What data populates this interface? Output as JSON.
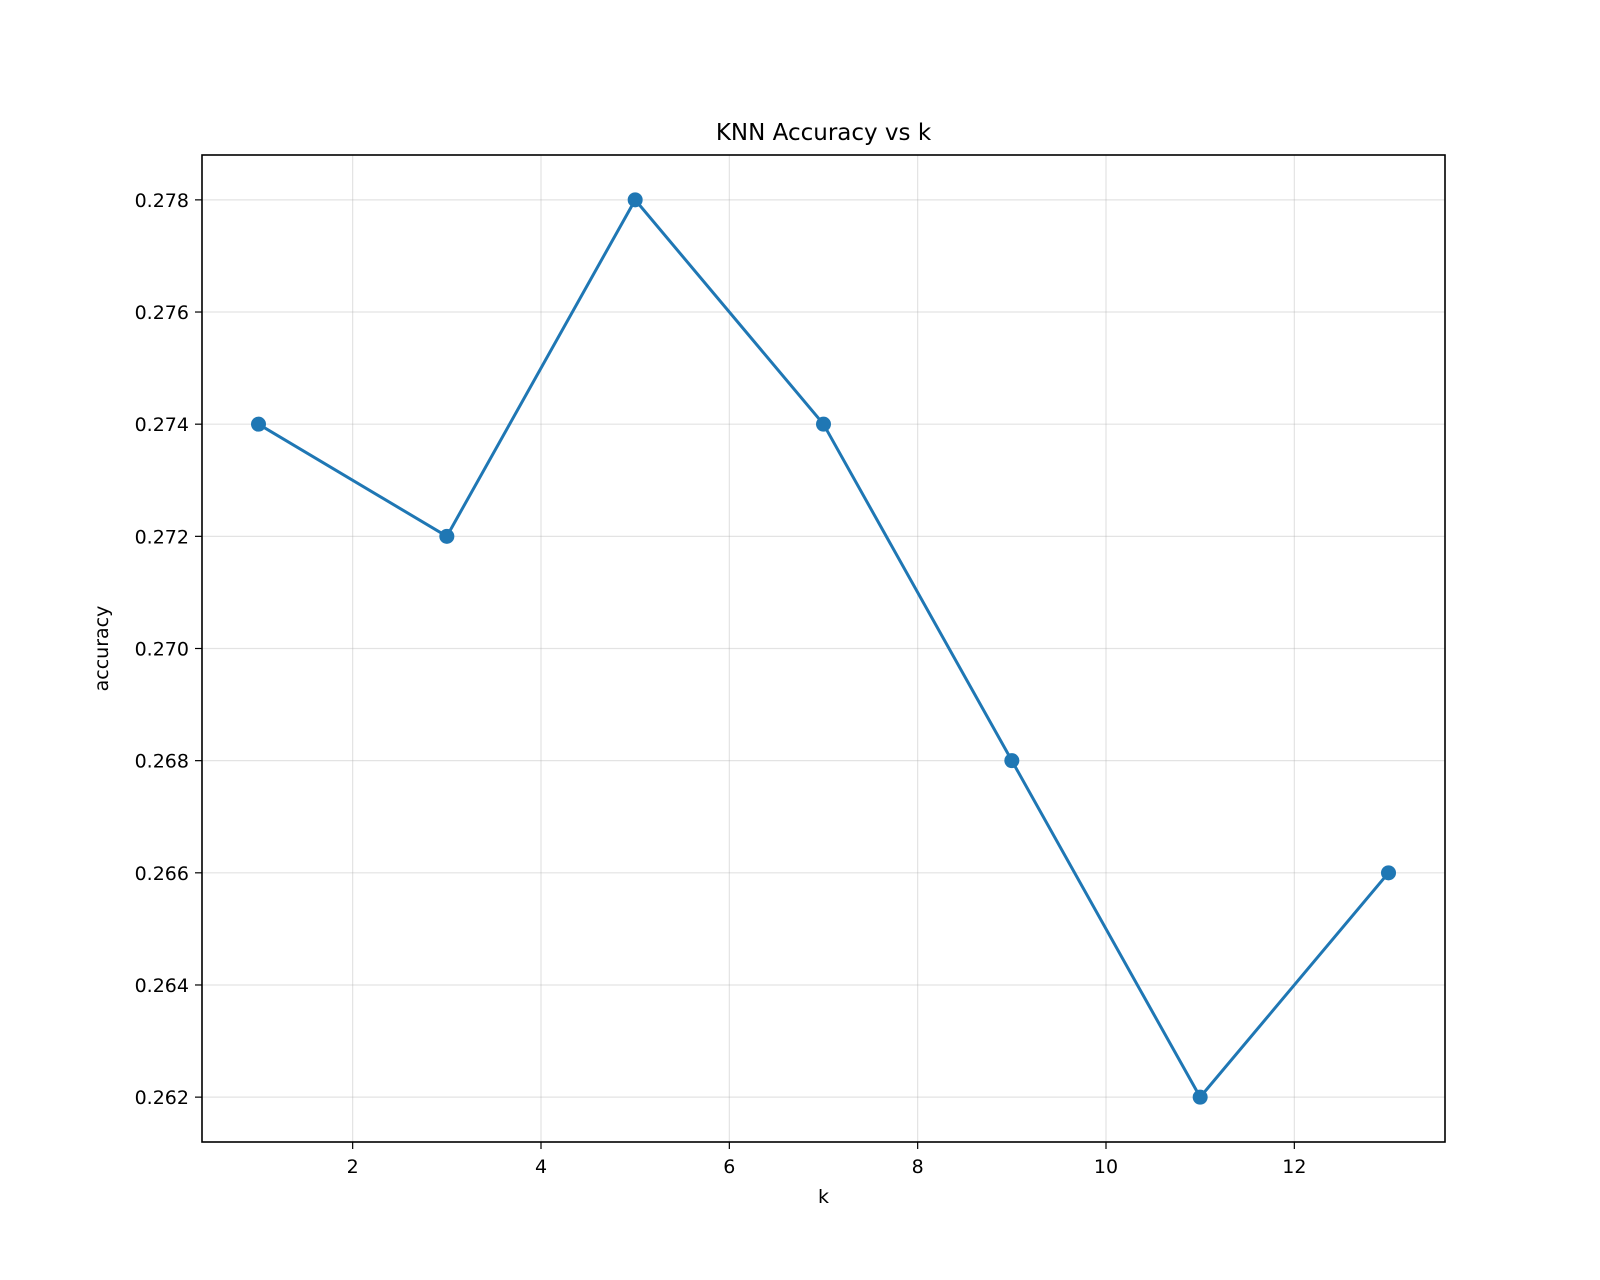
{
  "chart_data": {
    "type": "line",
    "title": "KNN Accuracy vs k",
    "xlabel": "k",
    "ylabel": "accuracy",
    "x": [
      1,
      3,
      5,
      7,
      9,
      11,
      13
    ],
    "series": [
      {
        "values": [
          0.274,
          0.272,
          0.278,
          0.274,
          0.268,
          0.262,
          0.266
        ],
        "color": "#1f77b4",
        "marker": "circle"
      }
    ],
    "xlim": [
      0.4,
      13.6
    ],
    "ylim": [
      0.2612,
      0.2788
    ],
    "xticks": [
      2,
      4,
      6,
      8,
      10,
      12
    ],
    "xtick_labels": [
      "2",
      "4",
      "6",
      "8",
      "10",
      "12"
    ],
    "yticks": [
      0.262,
      0.264,
      0.266,
      0.268,
      0.27,
      0.272,
      0.274,
      0.276,
      0.278
    ],
    "ytick_labels": [
      "0.262",
      "0.264",
      "0.266",
      "0.268",
      "0.270",
      "0.272",
      "0.274",
      "0.276",
      "0.278"
    ],
    "grid": true,
    "legend": "none"
  }
}
